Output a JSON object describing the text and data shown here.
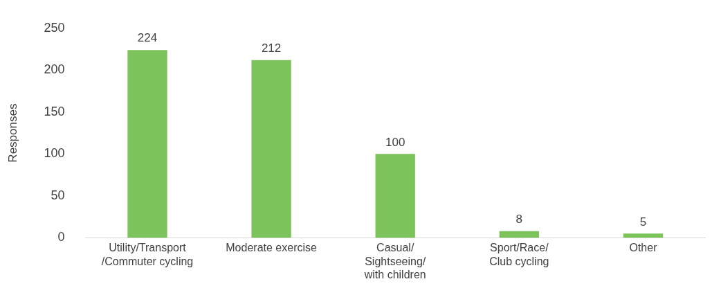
{
  "chart_data": {
    "type": "bar",
    "ylabel": "Responses",
    "categories": [
      "Utility/Transport\n/Commuter cycling",
      "Moderate exercise",
      "Casual/\nSightseeing/\nwith children",
      "Sport/Race/\nClub cycling",
      "Other"
    ],
    "values": [
      224,
      212,
      100,
      8,
      5
    ],
    "color": "#7dc35b",
    "ylim": [
      0,
      250
    ],
    "yticks": [
      0,
      50,
      100,
      150,
      200,
      250
    ],
    "grid": false,
    "legend": false,
    "data_labels": true
  }
}
